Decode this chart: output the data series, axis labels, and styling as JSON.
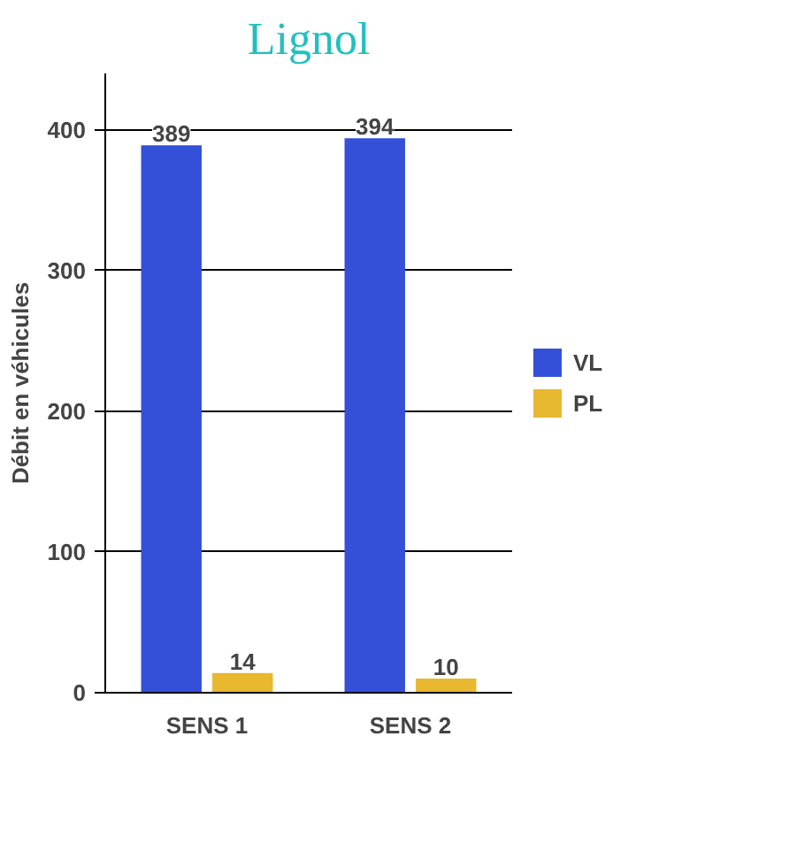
{
  "chart_data": {
    "type": "bar",
    "title": "Lignol",
    "ylabel": "Débit en véhicules",
    "categories": [
      "SENS 1",
      "SENS 2"
    ],
    "series": [
      {
        "name": "VL",
        "color": "#3550d8",
        "values": [
          389,
          394
        ]
      },
      {
        "name": "PL",
        "color": "#e8b830",
        "values": [
          14,
          10
        ]
      }
    ],
    "ylim": [
      0,
      440
    ],
    "yticks": [
      0,
      100,
      200,
      300,
      400
    ],
    "grid": "y",
    "legend": "right",
    "data_labels": true
  }
}
